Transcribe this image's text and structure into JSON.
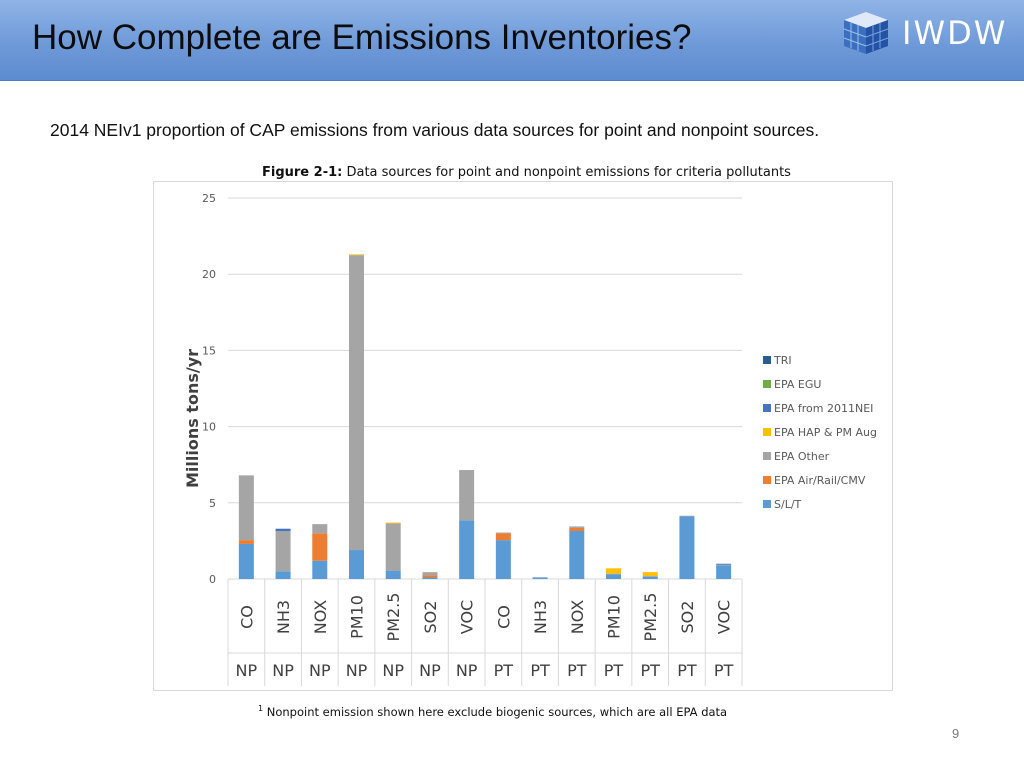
{
  "header": {
    "title": "How Complete are Emissions Inventories?",
    "logo_text": "IWDW"
  },
  "subtitle": "2014 NEIv1 proportion of CAP emissions from various data sources for point and nonpoint sources.",
  "figure": {
    "caption_label": "Figure 2-1:",
    "caption_text": " Data sources for point and nonpoint emissions for criteria pollutants"
  },
  "footnote": {
    "mark": "1",
    "text": " Nonpoint emission shown here exclude biogenic sources, which are all EPA data"
  },
  "page_number": "9",
  "chart_data": {
    "type": "bar",
    "stacked": true,
    "title": "",
    "xlabel": "",
    "ylabel": "Millions tons/yr",
    "ylim": [
      0,
      25
    ],
    "yticks": [
      0,
      5,
      10,
      15,
      20,
      25
    ],
    "grid": true,
    "legend_position": "right",
    "categories": [
      "CO",
      "NH3",
      "NOX",
      "PM10",
      "PM2.5",
      "SO2",
      "VOC",
      "CO",
      "NH3",
      "NOX",
      "PM10",
      "PM2.5",
      "SO2",
      "VOC"
    ],
    "groups": [
      "NP",
      "NP",
      "NP",
      "NP",
      "NP",
      "NP",
      "NP",
      "PT",
      "PT",
      "PT",
      "PT",
      "PT",
      "PT",
      "PT"
    ],
    "series": [
      {
        "name": "S/L/T",
        "color": "#5b9bd5",
        "values": [
          2.3,
          0.5,
          1.2,
          1.9,
          0.55,
          0.1,
          3.85,
          2.55,
          0.05,
          3.15,
          0.3,
          0.15,
          4.1,
          0.9
        ]
      },
      {
        "name": "EPA Air/Rail/CMV",
        "color": "#ed7d31",
        "values": [
          0.25,
          0,
          1.8,
          0,
          0,
          0.15,
          0,
          0.45,
          0,
          0.2,
          0,
          0,
          0,
          0
        ]
      },
      {
        "name": "EPA Other",
        "color": "#a5a5a5",
        "values": [
          4.25,
          2.65,
          0.6,
          19.35,
          3.1,
          0.2,
          3.3,
          0.05,
          0,
          0.1,
          0.05,
          0.05,
          0.05,
          0.05
        ]
      },
      {
        "name": "EPA HAP & PM Aug",
        "color": "#ffc000",
        "values": [
          0,
          0,
          0,
          0.05,
          0.05,
          0,
          0,
          0,
          0,
          0,
          0.35,
          0.25,
          0,
          0
        ]
      },
      {
        "name": "EPA from 2011NEI",
        "color": "#4472c4",
        "values": [
          0,
          0.15,
          0,
          0,
          0,
          0,
          0,
          0,
          0.05,
          0,
          0,
          0,
          0,
          0.05
        ]
      },
      {
        "name": "EPA EGU",
        "color": "#70ad47",
        "values": [
          0,
          0,
          0,
          0,
          0,
          0,
          0,
          0,
          0,
          0,
          0,
          0,
          0,
          0
        ]
      },
      {
        "name": "TRI",
        "color": "#255e91",
        "values": [
          0,
          0,
          0,
          0,
          0,
          0,
          0,
          0,
          0,
          0,
          0,
          0,
          0,
          0
        ]
      }
    ],
    "legend_order": [
      "TRI",
      "EPA EGU",
      "EPA from 2011NEI",
      "EPA HAP & PM Aug",
      "EPA Other",
      "EPA Air/Rail/CMV",
      "S/L/T"
    ]
  }
}
